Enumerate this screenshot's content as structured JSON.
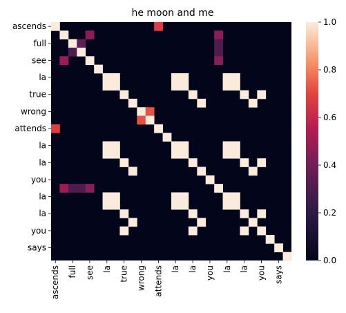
{
  "chart_data": {
    "type": "heatmap",
    "title": "he moon and me",
    "xlabel": "",
    "ylabel": "",
    "row_labels": [
      "ascends",
      "",
      "full",
      "",
      "see",
      "",
      "la",
      "",
      "true",
      "",
      "wrong",
      "",
      "attends",
      "",
      "la",
      "",
      "la",
      "",
      "you",
      "",
      "la",
      "",
      "la",
      "",
      "you",
      "",
      "says",
      ""
    ],
    "col_labels": [
      "ascends",
      "",
      "full",
      "",
      "see",
      "",
      "la",
      "",
      "true",
      "",
      "wrong",
      "",
      "attends",
      "",
      "la",
      "",
      "la",
      "",
      "you",
      "",
      "la",
      "",
      "la",
      "",
      "you",
      "",
      "says",
      ""
    ],
    "colorbar": {
      "min": 0.0,
      "max": 1.0,
      "ticks": [
        "0.0",
        "0.2",
        "0.4",
        "0.6",
        "0.8",
        "1.0"
      ],
      "colormap": "rocket"
    },
    "cells": [
      [
        0,
        0,
        1.0
      ],
      [
        0,
        12,
        0.68
      ],
      [
        1,
        1,
        1.0
      ],
      [
        1,
        4,
        0.45
      ],
      [
        1,
        19,
        0.45
      ],
      [
        2,
        2,
        1.0
      ],
      [
        2,
        3,
        0.35
      ],
      [
        2,
        19,
        0.3
      ],
      [
        3,
        2,
        0.3
      ],
      [
        3,
        3,
        1.0
      ],
      [
        3,
        19,
        0.3
      ],
      [
        4,
        1,
        0.5
      ],
      [
        4,
        4,
        1.0
      ],
      [
        4,
        19,
        0.45
      ],
      [
        5,
        5,
        1.0
      ],
      [
        6,
        6,
        1.0
      ],
      [
        6,
        7,
        1.0
      ],
      [
        6,
        14,
        1.0
      ],
      [
        6,
        15,
        1.0
      ],
      [
        6,
        20,
        1.0
      ],
      [
        6,
        21,
        1.0
      ],
      [
        7,
        6,
        1.0
      ],
      [
        7,
        7,
        1.0
      ],
      [
        7,
        14,
        1.0
      ],
      [
        7,
        15,
        1.0
      ],
      [
        7,
        20,
        1.0
      ],
      [
        7,
        21,
        1.0
      ],
      [
        8,
        8,
        1.0
      ],
      [
        8,
        16,
        1.0
      ],
      [
        8,
        22,
        1.0
      ],
      [
        8,
        24,
        1.0
      ],
      [
        9,
        9,
        1.0
      ],
      [
        9,
        17,
        1.0
      ],
      [
        9,
        23,
        1.0
      ],
      [
        10,
        10,
        1.0
      ],
      [
        10,
        11,
        0.72
      ],
      [
        11,
        10,
        0.72
      ],
      [
        11,
        11,
        1.0
      ],
      [
        12,
        0,
        0.68
      ],
      [
        12,
        12,
        1.0
      ],
      [
        13,
        13,
        1.0
      ],
      [
        14,
        6,
        1.0
      ],
      [
        14,
        7,
        1.0
      ],
      [
        14,
        14,
        1.0
      ],
      [
        14,
        15,
        1.0
      ],
      [
        14,
        20,
        1.0
      ],
      [
        14,
        21,
        1.0
      ],
      [
        15,
        6,
        1.0
      ],
      [
        15,
        7,
        1.0
      ],
      [
        15,
        14,
        1.0
      ],
      [
        15,
        15,
        1.0
      ],
      [
        15,
        20,
        1.0
      ],
      [
        15,
        21,
        1.0
      ],
      [
        16,
        8,
        1.0
      ],
      [
        16,
        16,
        1.0
      ],
      [
        16,
        22,
        1.0
      ],
      [
        16,
        24,
        1.0
      ],
      [
        17,
        9,
        1.0
      ],
      [
        17,
        17,
        1.0
      ],
      [
        17,
        23,
        1.0
      ],
      [
        18,
        18,
        1.0
      ],
      [
        19,
        1,
        0.5
      ],
      [
        19,
        2,
        0.3
      ],
      [
        19,
        3,
        0.3
      ],
      [
        19,
        4,
        0.45
      ],
      [
        19,
        19,
        1.0
      ],
      [
        20,
        6,
        1.0
      ],
      [
        20,
        7,
        1.0
      ],
      [
        20,
        14,
        1.0
      ],
      [
        20,
        15,
        1.0
      ],
      [
        20,
        20,
        1.0
      ],
      [
        20,
        21,
        1.0
      ],
      [
        21,
        6,
        1.0
      ],
      [
        21,
        7,
        1.0
      ],
      [
        21,
        14,
        1.0
      ],
      [
        21,
        15,
        1.0
      ],
      [
        21,
        20,
        1.0
      ],
      [
        21,
        21,
        1.0
      ],
      [
        22,
        8,
        1.0
      ],
      [
        22,
        16,
        1.0
      ],
      [
        22,
        22,
        1.0
      ],
      [
        22,
        24,
        1.0
      ],
      [
        23,
        9,
        1.0
      ],
      [
        23,
        17,
        1.0
      ],
      [
        23,
        23,
        1.0
      ],
      [
        24,
        8,
        1.0
      ],
      [
        24,
        16,
        1.0
      ],
      [
        24,
        22,
        1.0
      ],
      [
        24,
        24,
        1.0
      ],
      [
        25,
        25,
        1.0
      ],
      [
        26,
        26,
        1.0
      ],
      [
        27,
        27,
        1.0
      ]
    ]
  }
}
